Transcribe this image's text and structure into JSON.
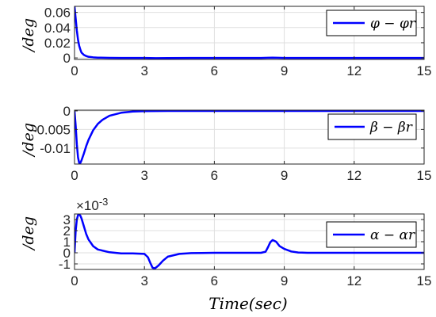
{
  "chart_data": [
    {
      "type": "line",
      "ylabel": "/deg",
      "xlim": [
        0,
        15
      ],
      "ylim": [
        -0.002,
        0.068
      ],
      "xticks": [
        0,
        3,
        6,
        9,
        12,
        15
      ],
      "yticks": [
        0,
        0.02,
        0.04,
        0.06
      ],
      "ytick_labels": [
        "0",
        "0.02",
        "0.04",
        "0.06"
      ],
      "grid": true,
      "legend_position": "top-right",
      "line_color": "#0000ff",
      "series": [
        {
          "name": "φ − φr",
          "x": [
            0,
            0.05,
            0.1,
            0.15,
            0.2,
            0.25,
            0.3,
            0.4,
            0.5,
            0.6,
            0.8,
            1.0,
            1.5,
            2.0,
            3.0,
            3.5,
            4.0,
            5.0,
            6.0,
            8.0,
            8.3,
            8.5,
            8.7,
            9.0,
            10.0,
            12.0,
            15.0
          ],
          "y": [
            0.068,
            0.052,
            0.036,
            0.024,
            0.016,
            0.011,
            0.007,
            0.004,
            0.0025,
            0.0015,
            0.0008,
            0.0004,
            0.0001,
            0,
            0,
            -0.0003,
            -0.0002,
            0,
            0,
            0,
            0.0002,
            0.0003,
            0.0002,
            0,
            0,
            0,
            0
          ]
        }
      ]
    },
    {
      "type": "line",
      "ylabel": "/deg",
      "xlim": [
        0,
        15
      ],
      "ylim": [
        -0.0143,
        0.0002
      ],
      "xticks": [
        0,
        3,
        6,
        9,
        12,
        15
      ],
      "yticks": [
        0,
        -0.005,
        -0.01
      ],
      "ytick_labels": [
        "0",
        "-0.005",
        "-0.01"
      ],
      "grid": true,
      "legend_position": "middle-right",
      "line_color": "#0000ff",
      "series": [
        {
          "name": "β − βr",
          "x": [
            0,
            0.05,
            0.1,
            0.15,
            0.2,
            0.25,
            0.3,
            0.4,
            0.5,
            0.6,
            0.8,
            1.0,
            1.2,
            1.5,
            2.0,
            2.5,
            3.0,
            4.0,
            6.0,
            9.0,
            12.0,
            15.0
          ],
          "y": [
            0,
            -0.004,
            -0.009,
            -0.0125,
            -0.014,
            -0.014,
            -0.0133,
            -0.0115,
            -0.0095,
            -0.0078,
            -0.0052,
            -0.0035,
            -0.0024,
            -0.0013,
            -0.0005,
            -0.00018,
            -7e-05,
            0,
            0,
            0,
            0,
            0
          ]
        }
      ]
    },
    {
      "type": "line",
      "ylabel": "/deg",
      "exponent_label": "×10",
      "exponent_power": "-3",
      "xlabel": "Time(sec)",
      "xlim": [
        0,
        15
      ],
      "ylim": [
        -1.5,
        3.5
      ],
      "xticks": [
        0,
        3,
        6,
        9,
        12,
        15
      ],
      "yticks": [
        -1,
        0,
        1,
        2,
        3
      ],
      "ytick_labels": [
        "-1",
        "0",
        "1",
        "2",
        "3"
      ],
      "grid": true,
      "legend_position": "top-right",
      "line_color": "#0000ff",
      "series": [
        {
          "name": "α − αr",
          "x": [
            0,
            0.05,
            0.1,
            0.15,
            0.2,
            0.25,
            0.3,
            0.4,
            0.5,
            0.6,
            0.8,
            1.0,
            1.5,
            2.0,
            2.5,
            3.0,
            3.15,
            3.25,
            3.35,
            3.45,
            3.6,
            3.8,
            4.0,
            4.5,
            5.0,
            6.0,
            8.0,
            8.2,
            8.3,
            8.4,
            8.5,
            8.65,
            8.8,
            9.0,
            9.3,
            9.6,
            10.0,
            12.0,
            15.0
          ],
          "y": [
            0,
            2.0,
            3.0,
            3.4,
            3.45,
            3.35,
            3.1,
            2.4,
            1.7,
            1.2,
            0.6,
            0.3,
            0.05,
            -0.05,
            -0.05,
            -0.1,
            -0.4,
            -0.9,
            -1.35,
            -1.4,
            -1.15,
            -0.7,
            -0.35,
            -0.1,
            -0.03,
            0,
            0,
            0.1,
            0.5,
            0.95,
            1.15,
            1.0,
            0.6,
            0.35,
            0.12,
            0.03,
            0,
            0,
            0
          ]
        }
      ]
    }
  ]
}
